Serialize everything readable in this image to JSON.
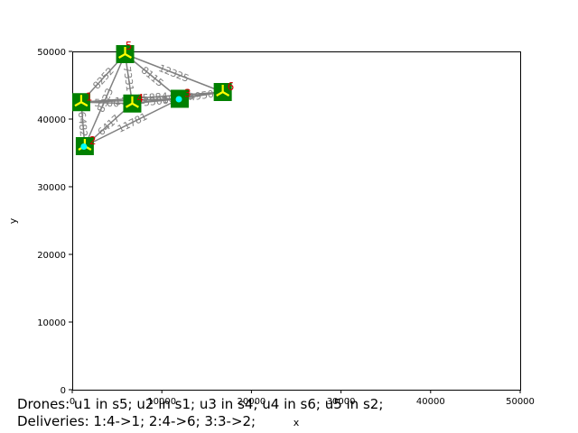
{
  "chart_data": {
    "type": "scatter",
    "title": "",
    "xlabel": "x",
    "ylabel": "y",
    "xlim": [
      0,
      50000
    ],
    "ylim": [
      0,
      50000
    ],
    "xticks": [
      0,
      10000,
      20000,
      30000,
      40000,
      50000
    ],
    "yticks": [
      0,
      10000,
      20000,
      30000,
      40000,
      50000
    ],
    "stations": [
      {
        "id": "1",
        "x": 1000,
        "y": 42500
      },
      {
        "id": "2",
        "x": 1400,
        "y": 36000
      },
      {
        "id": "3",
        "x": 12000,
        "y": 43000
      },
      {
        "id": "4",
        "x": 6700,
        "y": 42300
      },
      {
        "id": "5",
        "x": 5900,
        "y": 49600
      },
      {
        "id": "6",
        "x": 16800,
        "y": 44000
      }
    ],
    "edges": [
      {
        "from": "1",
        "to": "5",
        "label": "8252"
      },
      {
        "from": "1",
        "to": "3",
        "label": "11023"
      },
      {
        "from": "1",
        "to": "4",
        "label": "5700"
      },
      {
        "from": "1",
        "to": "6",
        "label": "15884"
      },
      {
        "from": "2",
        "to": "5",
        "label": "8323"
      },
      {
        "from": "2",
        "to": "4",
        "label": "6417"
      },
      {
        "from": "2",
        "to": "3",
        "label": "11781"
      },
      {
        "from": "2",
        "to": "1",
        "label": "6482"
      },
      {
        "from": "5",
        "to": "3",
        "label": "8115"
      },
      {
        "from": "5",
        "to": "6",
        "label": "12325"
      },
      {
        "from": "5",
        "to": "4",
        "label": "7331"
      },
      {
        "from": "4",
        "to": "3",
        "label": "5300"
      },
      {
        "from": "4",
        "to": "6",
        "label": "10100"
      },
      {
        "from": "3",
        "to": "6",
        "label": "4950"
      }
    ],
    "drones_at": [
      {
        "drone": "u1",
        "station": "5"
      },
      {
        "drone": "u2",
        "station": "1"
      },
      {
        "drone": "u3",
        "station": "4"
      },
      {
        "drone": "u4",
        "station": "6"
      },
      {
        "drone": "u5",
        "station": "2"
      }
    ],
    "packages_at": [
      "2",
      "3"
    ],
    "colors": {
      "station": "#008000",
      "edge": "#808080",
      "drone": "#ffff00",
      "package": "#00ffff",
      "station_id": "#d00000"
    }
  },
  "captions": {
    "drones": "Drones: u1 in s5; u2 in s1; u3 in s4; u4 in s6; u5 in s2;",
    "deliveries": "Deliveries: 1:4->1; 2:4->6; 3:3->2;"
  }
}
